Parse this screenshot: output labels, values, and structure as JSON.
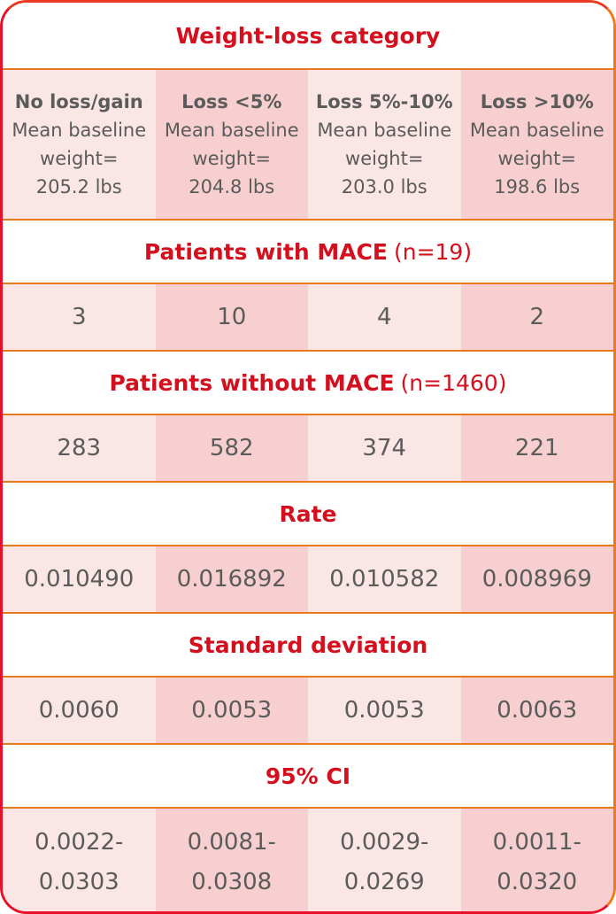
{
  "title": "Weight-loss category",
  "categories": [
    {
      "name": "No loss/gain",
      "line1": "Mean baseline",
      "line2": "weight=",
      "line3": "205.2 lbs"
    },
    {
      "name": "Loss <5%",
      "line1": "Mean baseline",
      "line2": "weight=",
      "line3": "204.8 lbs"
    },
    {
      "name": "Loss 5%-10%",
      "line1": "Mean baseline",
      "line2": "weight=",
      "line3": "203.0 lbs"
    },
    {
      "name": "Loss >10%",
      "line1": "Mean baseline",
      "line2": "weight=",
      "line3": "198.6 lbs"
    }
  ],
  "mace": {
    "label": "Patients with MACE",
    "count": "(n=19)",
    "values": [
      "3",
      "10",
      "4",
      "2"
    ]
  },
  "no_mace": {
    "label": "Patients without MACE",
    "count": "(n=1460)",
    "values": [
      "283",
      "582",
      "374",
      "221"
    ]
  },
  "rate": {
    "label": "Rate",
    "values": [
      "0.010490",
      "0.016892",
      "0.010582",
      "0.008969"
    ]
  },
  "sd": {
    "label": "Standard deviation",
    "values": [
      "0.0060",
      "0.0053",
      "0.0053",
      "0.0063"
    ]
  },
  "ci": {
    "label": "95% CI",
    "values": [
      {
        "low": "0.0022-",
        "high": "0.0303"
      },
      {
        "low": "0.0081-",
        "high": "0.0308"
      },
      {
        "low": "0.0029-",
        "high": "0.0269"
      },
      {
        "low": "0.0011-",
        "high": "0.0320"
      }
    ]
  },
  "colors": {
    "border": "#e8102a",
    "accent": "#d4101e",
    "separator": "#e7791c",
    "cell_light": "#fbe6e6",
    "cell_dark": "#f7cfd0",
    "text": "#5b5b5b"
  }
}
